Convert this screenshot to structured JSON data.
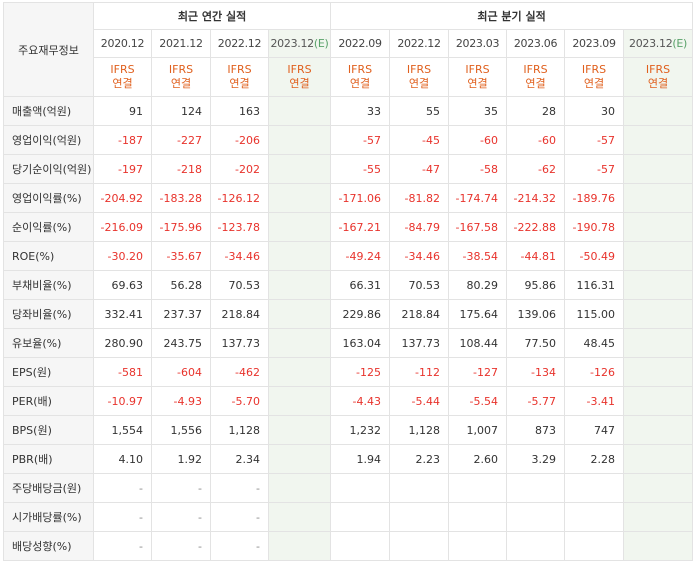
{
  "header": {
    "label_column": "주요재무정보",
    "annual_title": "최근 연간 실적",
    "quarterly_title": "최근 분기 실적",
    "estimate_mark": "(E)",
    "ifrs_line1": "IFRS",
    "ifrs_line2": "연결"
  },
  "annual_periods": [
    {
      "label": "2020.12",
      "estimate": false
    },
    {
      "label": "2021.12",
      "estimate": false
    },
    {
      "label": "2022.12",
      "estimate": false
    },
    {
      "label": "2023.12",
      "estimate": true
    }
  ],
  "quarterly_periods": [
    {
      "label": "2022.09",
      "estimate": false
    },
    {
      "label": "2022.12",
      "estimate": false
    },
    {
      "label": "2023.03",
      "estimate": false
    },
    {
      "label": "2023.06",
      "estimate": false
    },
    {
      "label": "2023.09",
      "estimate": false
    },
    {
      "label": "2023.12",
      "estimate": true
    }
  ],
  "rows": [
    {
      "label": "매출액(억원)",
      "annual": [
        "91",
        "124",
        "163",
        ""
      ],
      "quarterly": [
        "33",
        "55",
        "35",
        "28",
        "30",
        ""
      ]
    },
    {
      "label": "영업이익(억원)",
      "annual": [
        "-187",
        "-227",
        "-206",
        ""
      ],
      "quarterly": [
        "-57",
        "-45",
        "-60",
        "-60",
        "-57",
        ""
      ]
    },
    {
      "label": "당기순이익(억원)",
      "annual": [
        "-197",
        "-218",
        "-202",
        ""
      ],
      "quarterly": [
        "-55",
        "-47",
        "-58",
        "-62",
        "-57",
        ""
      ]
    },
    {
      "label": "영업이익률(%)",
      "annual": [
        "-204.92",
        "-183.28",
        "-126.12",
        ""
      ],
      "quarterly": [
        "-171.06",
        "-81.82",
        "-174.74",
        "-214.32",
        "-189.76",
        ""
      ]
    },
    {
      "label": "순이익률(%)",
      "annual": [
        "-216.09",
        "-175.96",
        "-123.78",
        ""
      ],
      "quarterly": [
        "-167.21",
        "-84.79",
        "-167.58",
        "-222.88",
        "-190.78",
        ""
      ]
    },
    {
      "label": "ROE(%)",
      "annual": [
        "-30.20",
        "-35.67",
        "-34.46",
        ""
      ],
      "quarterly": [
        "-49.24",
        "-34.46",
        "-38.54",
        "-44.81",
        "-50.49",
        ""
      ]
    },
    {
      "label": "부채비율(%)",
      "annual": [
        "69.63",
        "56.28",
        "70.53",
        ""
      ],
      "quarterly": [
        "66.31",
        "70.53",
        "80.29",
        "95.86",
        "116.31",
        ""
      ]
    },
    {
      "label": "당좌비율(%)",
      "annual": [
        "332.41",
        "237.37",
        "218.84",
        ""
      ],
      "quarterly": [
        "229.86",
        "218.84",
        "175.64",
        "139.06",
        "115.00",
        ""
      ]
    },
    {
      "label": "유보율(%)",
      "annual": [
        "280.90",
        "243.75",
        "137.73",
        ""
      ],
      "quarterly": [
        "163.04",
        "137.73",
        "108.44",
        "77.50",
        "48.45",
        ""
      ]
    },
    {
      "label": "EPS(원)",
      "annual": [
        "-581",
        "-604",
        "-462",
        ""
      ],
      "quarterly": [
        "-125",
        "-112",
        "-127",
        "-134",
        "-126",
        ""
      ]
    },
    {
      "label": "PER(배)",
      "annual": [
        "-10.97",
        "-4.93",
        "-5.70",
        ""
      ],
      "quarterly": [
        "-4.43",
        "-5.44",
        "-5.54",
        "-5.77",
        "-3.41",
        ""
      ]
    },
    {
      "label": "BPS(원)",
      "annual": [
        "1,554",
        "1,556",
        "1,128",
        ""
      ],
      "quarterly": [
        "1,232",
        "1,128",
        "1,007",
        "873",
        "747",
        ""
      ]
    },
    {
      "label": "PBR(배)",
      "annual": [
        "4.10",
        "1.92",
        "2.34",
        ""
      ],
      "quarterly": [
        "1.94",
        "2.23",
        "2.60",
        "3.29",
        "2.28",
        ""
      ]
    },
    {
      "label": "주당배당금(원)",
      "annual": [
        "-",
        "-",
        "-",
        ""
      ],
      "quarterly": [
        "",
        "",
        "",
        "",
        "",
        ""
      ]
    },
    {
      "label": "시가배당률(%)",
      "annual": [
        "-",
        "-",
        "-",
        ""
      ],
      "quarterly": [
        "",
        "",
        "",
        "",
        "",
        ""
      ]
    },
    {
      "label": "배당성향(%)",
      "annual": [
        "-",
        "-",
        "-",
        ""
      ],
      "quarterly": [
        "",
        "",
        "",
        "",
        "",
        ""
      ]
    }
  ],
  "colors": {
    "negative": "#e8332c",
    "ifrs": "#e0601e",
    "estimate_bg": "#f1f6ef",
    "estimate_mark": "#5aa26a",
    "label_bg": "#f6f6f6"
  }
}
